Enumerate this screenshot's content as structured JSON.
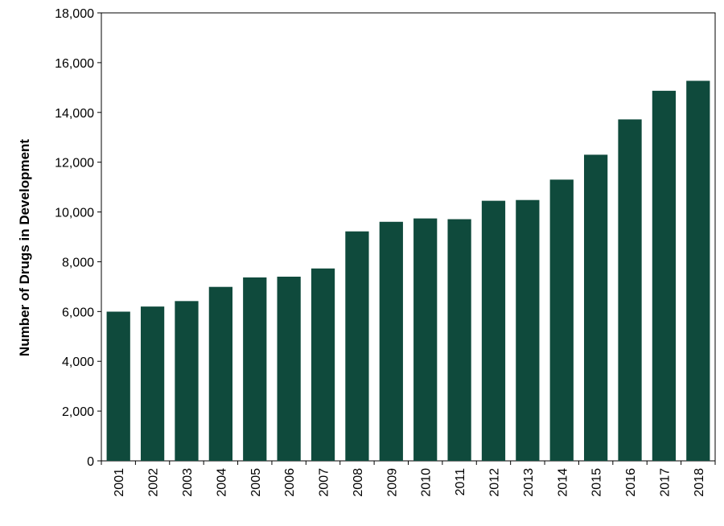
{
  "chart_data": {
    "type": "bar",
    "title": "",
    "xlabel": "",
    "ylabel": "Number of  Drugs in Development",
    "categories": [
      "2001",
      "2002",
      "2003",
      "2004",
      "2005",
      "2006",
      "2007",
      "2008",
      "2009",
      "2010",
      "2011",
      "2012",
      "2013",
      "2014",
      "2015",
      "2016",
      "2017",
      "2018"
    ],
    "values": [
      5995,
      6200,
      6420,
      6990,
      7370,
      7400,
      7730,
      9220,
      9605,
      9740,
      9710,
      10450,
      10480,
      11300,
      12300,
      13720,
      14870,
      15270
    ],
    "ylim": [
      0,
      18000
    ],
    "yticks": [
      0,
      2000,
      4000,
      6000,
      8000,
      10000,
      12000,
      14000,
      16000,
      18000
    ],
    "ytick_labels": [
      "0",
      "2,000",
      "4,000",
      "6,000",
      "8,000",
      "10,000",
      "12,000",
      "14,000",
      "16,000",
      "18,000"
    ],
    "grid": false,
    "legend": "none",
    "bar_color": "#0f4a3c",
    "axis_color": "#000000"
  }
}
